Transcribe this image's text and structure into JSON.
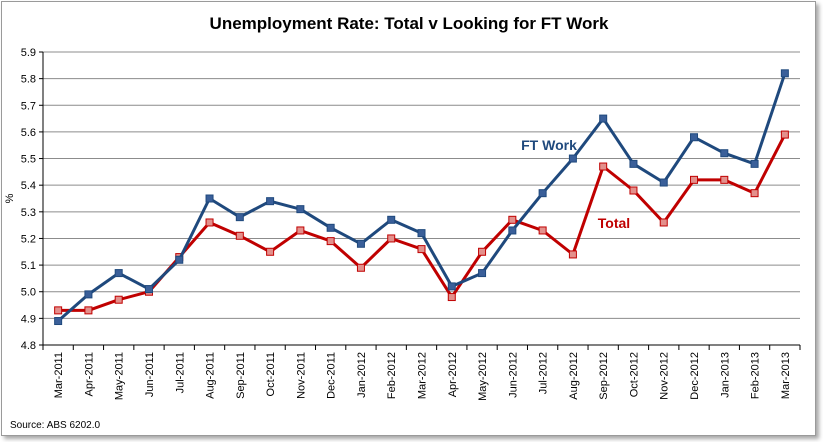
{
  "chart_data": {
    "type": "line",
    "title": "Unemployment Rate: Total v Looking for FT Work",
    "xlabel": "",
    "ylabel": "%",
    "ylim": [
      4.8,
      5.9
    ],
    "yticks": [
      "4.8",
      "4.9",
      "5.0",
      "5.1",
      "5.2",
      "5.3",
      "5.4",
      "5.5",
      "5.6",
      "5.7",
      "5.8",
      "5.9"
    ],
    "grid": true,
    "categories": [
      "Mar-2011",
      "Apr-2011",
      "May-2011",
      "Jun-2011",
      "Jul-2011",
      "Aug-2011",
      "Sep-2011",
      "Oct-2011",
      "Nov-2011",
      "Dec-2011",
      "Jan-2012",
      "Feb-2012",
      "Mar-2012",
      "Apr-2012",
      "May-2012",
      "Jun-2012",
      "Jul-2012",
      "Aug-2012",
      "Sep-2012",
      "Oct-2012",
      "Nov-2012",
      "Dec-2012",
      "Jan-2013",
      "Feb-2013",
      "Mar-2013"
    ],
    "series": [
      {
        "name": "FT Work",
        "color": "#1f497d",
        "marker_color": "#3a5f99",
        "values": [
          4.89,
          4.99,
          5.07,
          5.01,
          5.12,
          5.35,
          5.28,
          5.34,
          5.31,
          5.24,
          5.18,
          5.27,
          5.22,
          5.02,
          5.07,
          5.23,
          5.37,
          5.5,
          5.65,
          5.48,
          5.41,
          5.58,
          5.52,
          5.48,
          5.82
        ]
      },
      {
        "name": "Total",
        "color": "#c00000",
        "marker_color": "#e3908c",
        "values": [
          4.93,
          4.93,
          4.97,
          5.0,
          5.13,
          5.26,
          5.21,
          5.15,
          5.23,
          5.19,
          5.09,
          5.2,
          5.16,
          4.98,
          5.15,
          5.27,
          5.23,
          5.14,
          5.47,
          5.38,
          5.26,
          5.42,
          5.42,
          5.37,
          5.59
        ]
      }
    ],
    "source": "Source: ABS 6202.0"
  }
}
